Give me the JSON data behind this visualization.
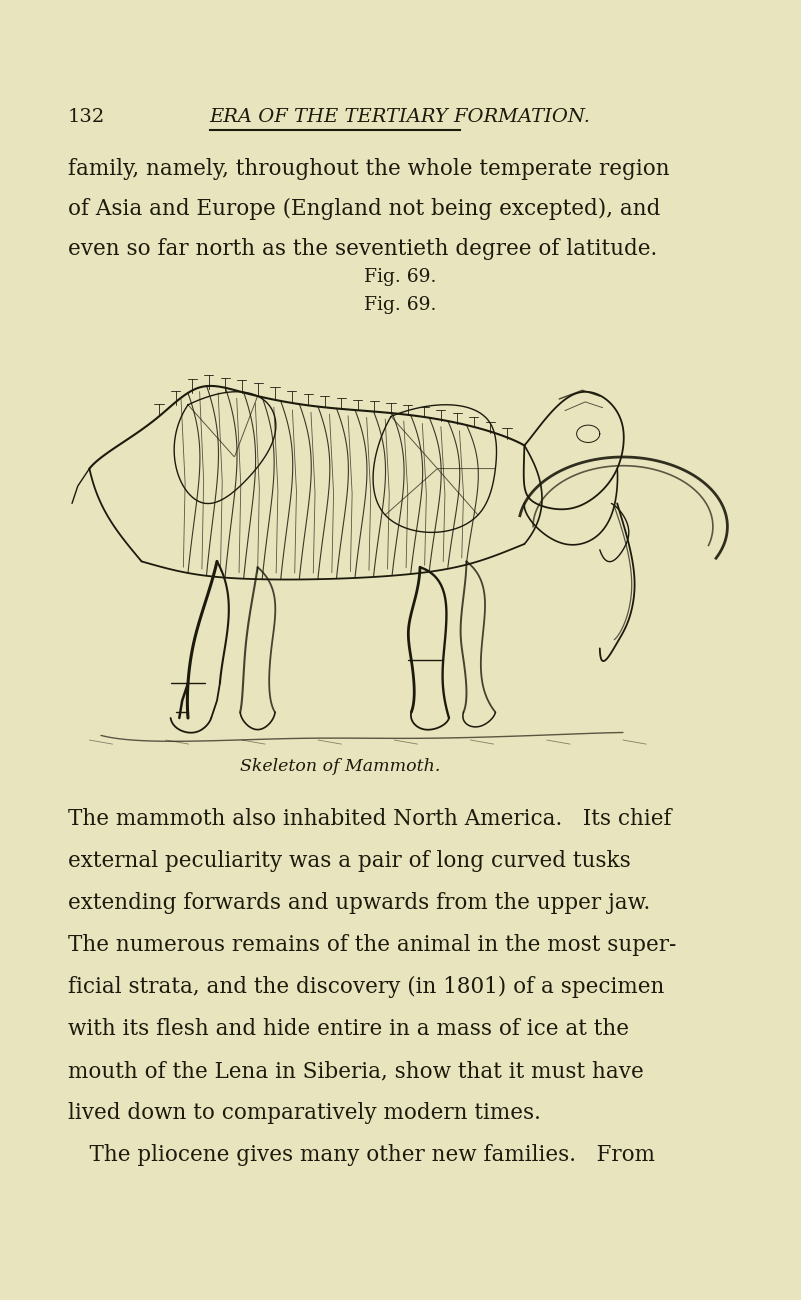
{
  "bg_color": "#e8e4be",
  "header_number": "132",
  "header_title": "ERA OF THE TERTIARY FORMATION.",
  "body_text_top": [
    "family, namely, throughout the whole temperate region",
    "of Asia and Europe (England not being excepted), and",
    "even so far north as the seventieth degree of latitude."
  ],
  "fig_label": "Fig. 69.",
  "caption": "Skeleton of Mammoth.",
  "body_text_bottom_lines": [
    "The mammoth also inhabited North America.   Its chief",
    "external peculiarity was a pair of long curved tusks",
    "extending forwards and upwards from the upper jaw.",
    "The numerous remains of the animal in the most super-",
    "ficial strata, and the discovery (in 1801) of a specimen",
    "with its flesh and hide entire in a mass of ice at the",
    "mouth of the Lena in Siberia, show that it must have",
    "lived down to comparatively modern times.",
    " The pliocene gives many other new families.   From"
  ],
  "text_color": "#1c1a0c",
  "fig_width": 8.01,
  "fig_height": 13.0,
  "dpi": 100
}
